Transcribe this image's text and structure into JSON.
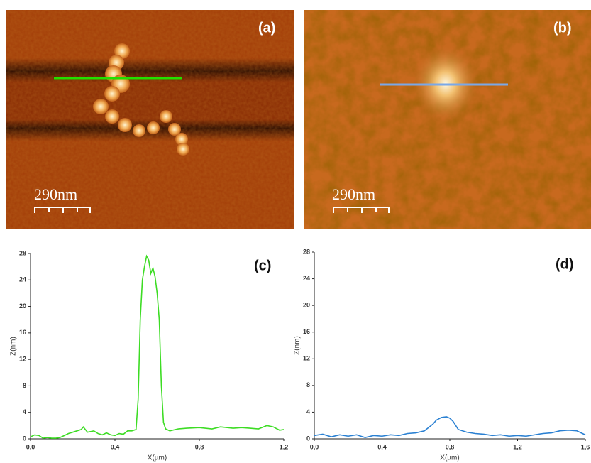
{
  "images": [
    {
      "label": "(a)",
      "scale_bar": "290nm"
    },
    {
      "label": "(b)",
      "scale_bar": "290nm"
    }
  ],
  "chart_data": [
    {
      "type": "line",
      "label": "(c)",
      "x_label": "X(µm)",
      "y_label": "Z(nm)",
      "xlim": [
        0,
        1.2
      ],
      "ylim": [
        0,
        28
      ],
      "xticks": [
        {
          "value": 0,
          "label": "0,0"
        },
        {
          "value": 0.4,
          "label": "0,4"
        },
        {
          "value": 0.8,
          "label": "0,8"
        },
        {
          "value": 1.2,
          "label": "1,2"
        }
      ],
      "yticks": [
        0,
        4,
        8,
        12,
        16,
        20,
        24,
        28
      ],
      "x": [
        0,
        0.02,
        0.04,
        0.06,
        0.08,
        0.1,
        0.12,
        0.14,
        0.16,
        0.18,
        0.2,
        0.22,
        0.24,
        0.25,
        0.27,
        0.3,
        0.32,
        0.34,
        0.36,
        0.38,
        0.4,
        0.42,
        0.44,
        0.46,
        0.48,
        0.5,
        0.51,
        0.52,
        0.53,
        0.54,
        0.55,
        0.56,
        0.57,
        0.58,
        0.59,
        0.6,
        0.61,
        0.62,
        0.63,
        0.64,
        0.66,
        0.7,
        0.74,
        0.8,
        0.86,
        0.9,
        0.96,
        1.0,
        1.04,
        1.08,
        1.12,
        1.15,
        1.18,
        1.2
      ],
      "series": [
        {
          "color": "#3ddc24",
          "values": [
            0.3,
            0.6,
            0.5,
            0.1,
            0.2,
            0.1,
            0.1,
            0.2,
            0.5,
            0.8,
            1.0,
            1.2,
            1.4,
            1.8,
            1.0,
            1.2,
            0.8,
            0.6,
            0.9,
            0.6,
            0.5,
            0.8,
            0.7,
            1.2,
            1.2,
            1.4,
            6,
            18,
            24,
            26,
            27.6,
            27,
            25,
            25.8,
            24.5,
            22,
            18,
            8,
            2.5,
            1.5,
            1.2,
            1.5,
            1.6,
            1.7,
            1.5,
            1.8,
            1.6,
            1.7,
            1.6,
            1.5,
            2.0,
            1.8,
            1.3,
            1.4
          ]
        }
      ]
    },
    {
      "type": "line",
      "label": "(d)",
      "x_label": "X(µm)",
      "y_label": "Z(nm)",
      "xlim": [
        0,
        1.6
      ],
      "ylim": [
        0,
        28
      ],
      "xticks": [
        {
          "value": 0,
          "label": "0,0"
        },
        {
          "value": 0.4,
          "label": "0,4"
        },
        {
          "value": 0.8,
          "label": "0,8"
        },
        {
          "value": 1.2,
          "label": "1,2"
        },
        {
          "value": 1.6,
          "label": "1,6"
        }
      ],
      "yticks": [
        0,
        4,
        8,
        12,
        16,
        20,
        24,
        28
      ],
      "x": [
        0,
        0.05,
        0.1,
        0.15,
        0.2,
        0.25,
        0.3,
        0.35,
        0.4,
        0.45,
        0.5,
        0.55,
        0.6,
        0.65,
        0.7,
        0.72,
        0.75,
        0.78,
        0.8,
        0.82,
        0.85,
        0.9,
        0.95,
        1.0,
        1.05,
        1.1,
        1.15,
        1.2,
        1.25,
        1.3,
        1.35,
        1.4,
        1.45,
        1.5,
        1.55,
        1.6
      ],
      "series": [
        {
          "color": "#2a80d2",
          "values": [
            0.5,
            0.7,
            0.3,
            0.6,
            0.4,
            0.6,
            0.2,
            0.5,
            0.4,
            0.6,
            0.5,
            0.8,
            0.9,
            1.2,
            2.2,
            2.8,
            3.2,
            3.3,
            3.1,
            2.6,
            1.4,
            1.0,
            0.8,
            0.7,
            0.5,
            0.6,
            0.4,
            0.5,
            0.4,
            0.6,
            0.8,
            0.9,
            1.2,
            1.3,
            1.2,
            0.6
          ]
        }
      ]
    }
  ]
}
